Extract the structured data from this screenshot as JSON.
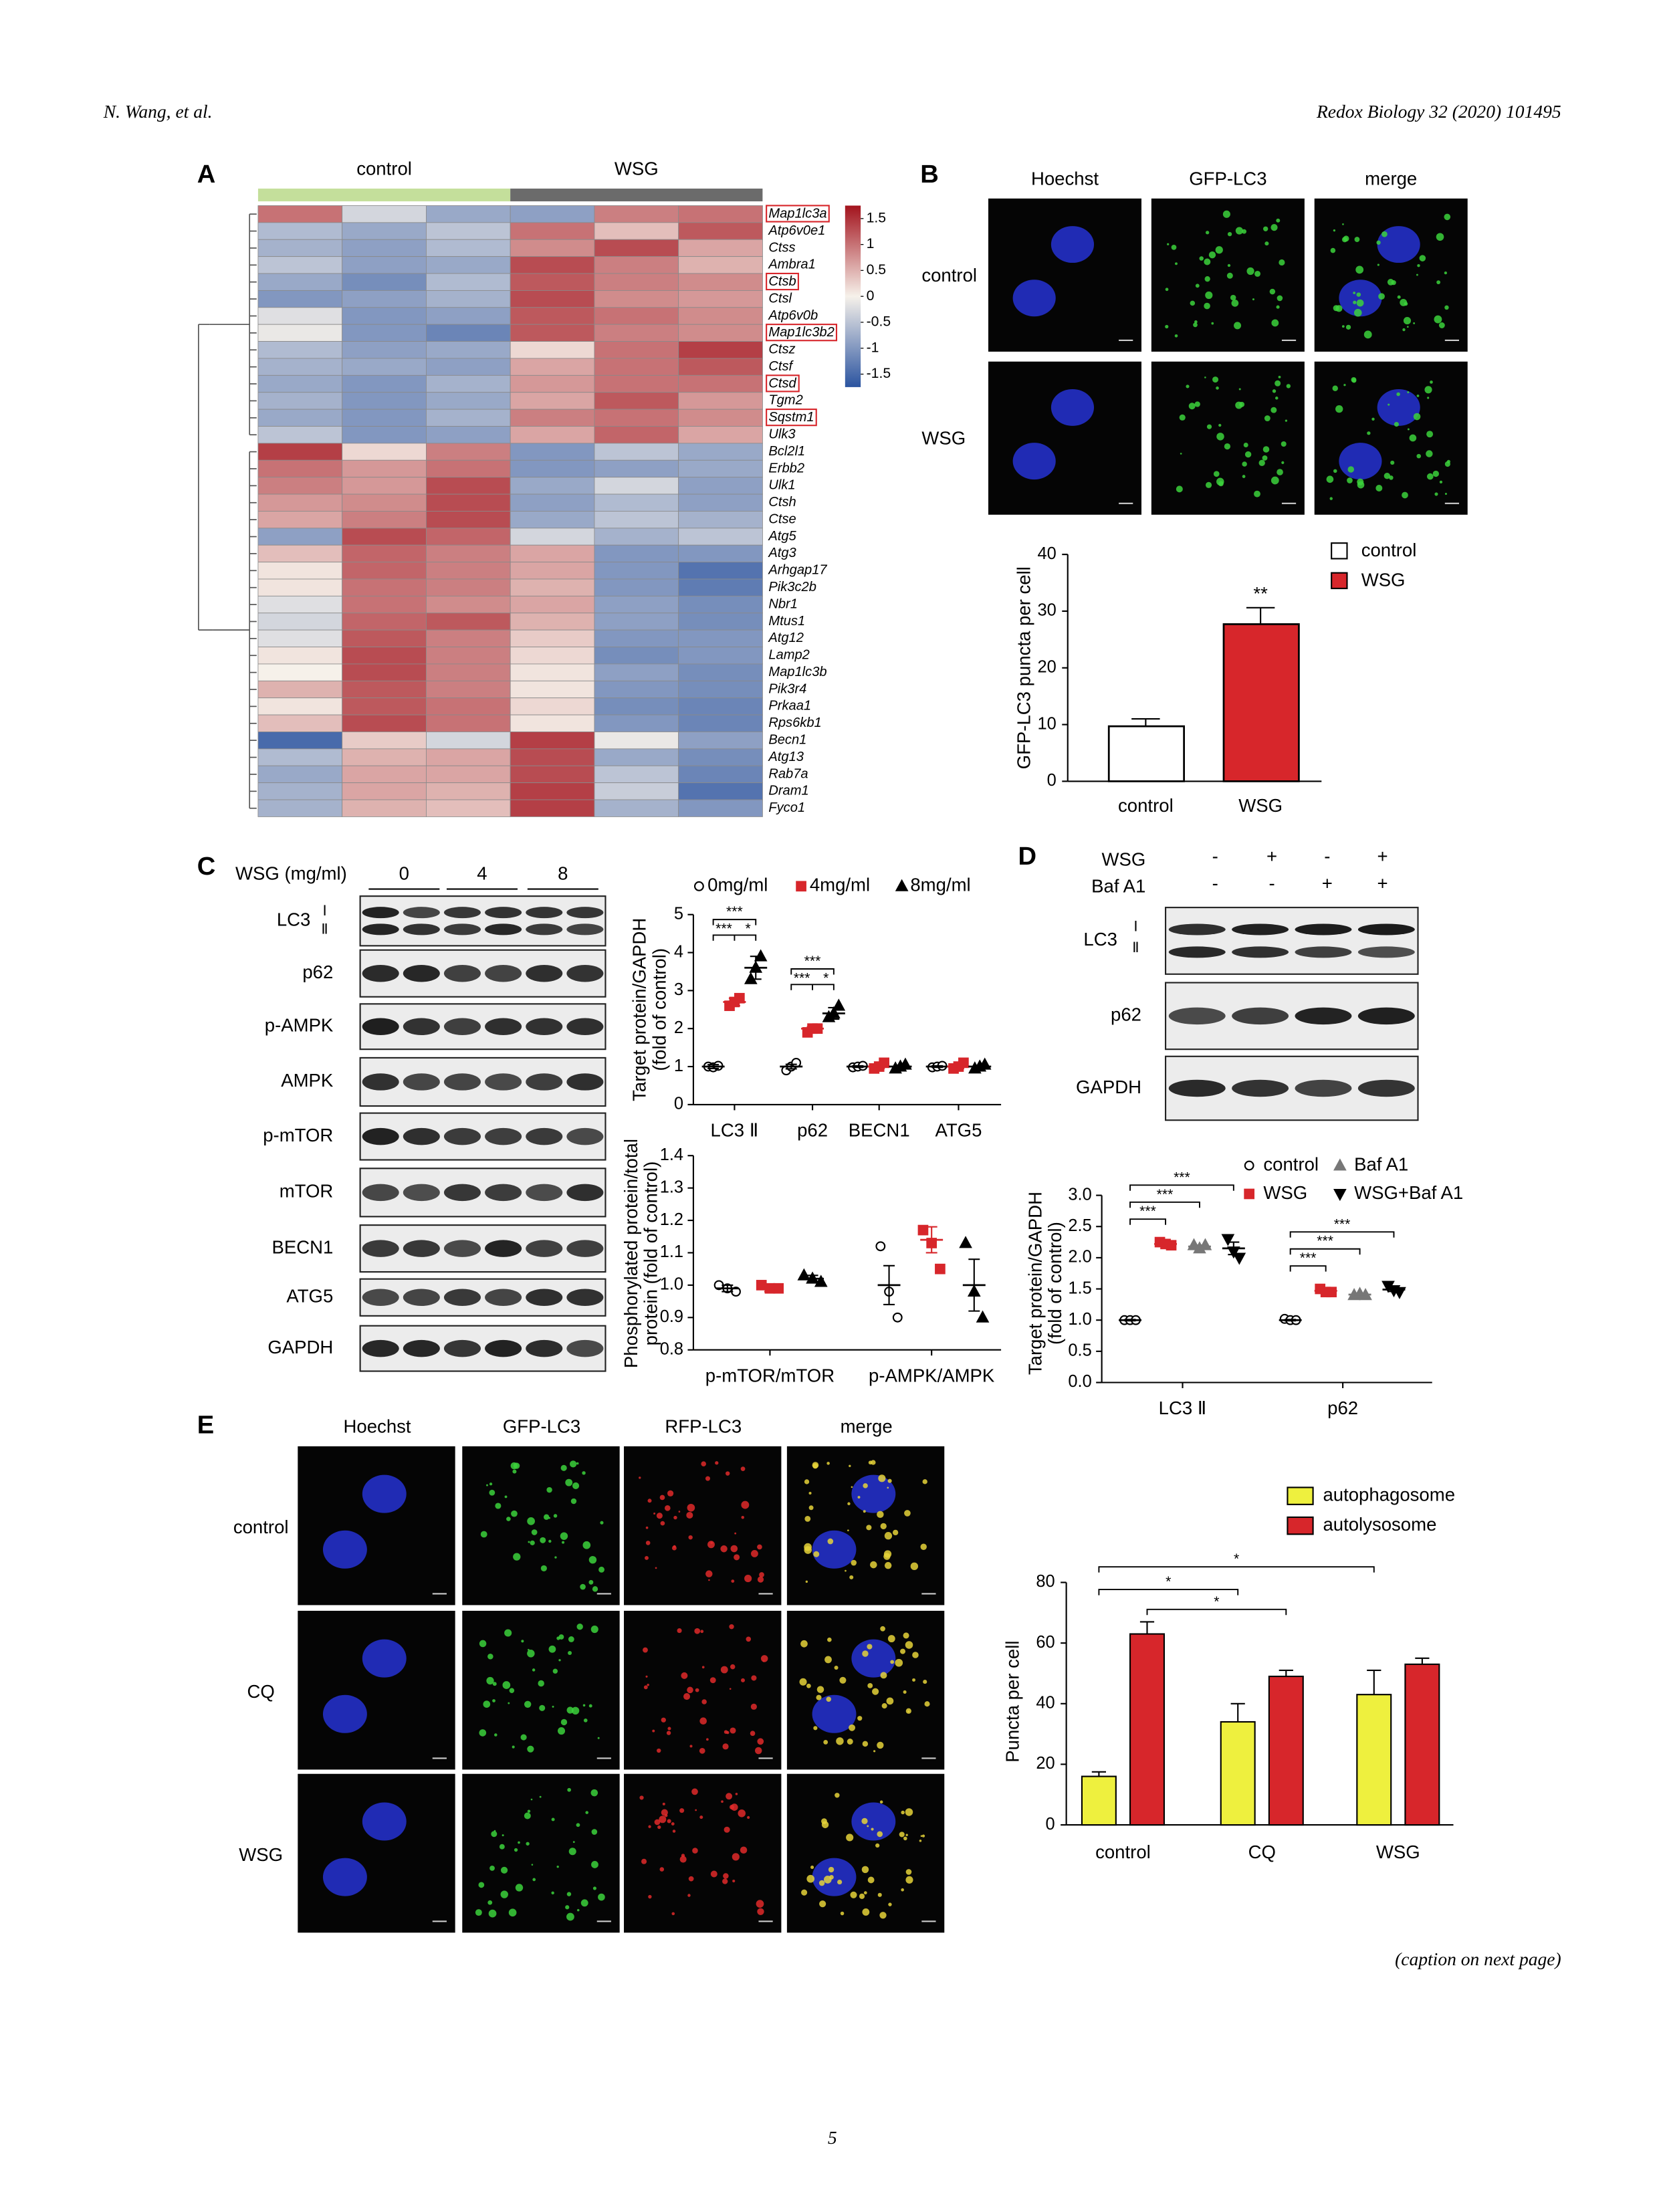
{
  "header": {
    "authors": "N. Wang, et al.",
    "journal": "Redox Biology 32 (2020) 101495"
  },
  "panel_a": {
    "label": "A",
    "groups": [
      "control",
      "WSG"
    ],
    "group_colors": [
      "#c4df9b",
      "#6b6b6b"
    ],
    "genes": [
      "Map1lc3a",
      "Atp6v0e1",
      "Ctss",
      "Ambra1",
      "Ctsb",
      "Ctsl",
      "Atp6v0b",
      "Map1lc3b2",
      "Ctsz",
      "Ctsf",
      "Ctsd",
      "Tgm2",
      "Sqstm1",
      "Ulk3",
      "Bcl2l1",
      "Erbb2",
      "Ulk1",
      "Ctsh",
      "Ctse",
      "Atg5",
      "Atg3",
      "Arhgap17",
      "Pik3c2b",
      "Nbr1",
      "Mtus1",
      "Atg12",
      "Lamp2",
      "Map1lc3b",
      "Pik3r4",
      "Prkaa1",
      "Rps6kb1",
      "Becn1",
      "Atg13",
      "Rab7a",
      "Dram1",
      "Fyco1"
    ],
    "boxed": [
      true,
      false,
      false,
      false,
      true,
      false,
      false,
      true,
      false,
      false,
      true,
      false,
      true,
      false,
      false,
      false,
      false,
      false,
      false,
      false,
      false,
      false,
      false,
      false,
      false,
      false,
      false,
      false,
      false,
      false,
      false,
      false,
      false,
      false,
      false,
      false
    ],
    "values": [
      [
        1.0,
        -0.3,
        -0.8,
        -0.9,
        0.9,
        1.0
      ],
      [
        -0.6,
        -0.8,
        -0.5,
        1.0,
        0.4,
        1.2
      ],
      [
        -0.7,
        -0.9,
        -0.6,
        0.8,
        1.3,
        0.6
      ],
      [
        -0.5,
        -0.9,
        -0.8,
        1.3,
        0.9,
        0.5
      ],
      [
        -0.8,
        -1.1,
        -0.6,
        1.2,
        0.9,
        0.8
      ],
      [
        -1.0,
        -0.9,
        -0.7,
        1.3,
        0.8,
        0.7
      ],
      [
        -0.2,
        -1.0,
        -0.9,
        1.2,
        1.0,
        0.8
      ],
      [
        -0.1,
        -1.0,
        -1.2,
        1.2,
        0.9,
        0.8
      ],
      [
        -0.6,
        -0.9,
        -0.8,
        0.2,
        1.0,
        1.4
      ],
      [
        -0.7,
        -0.8,
        -0.9,
        0.6,
        1.0,
        1.2
      ],
      [
        -0.8,
        -1.0,
        -0.7,
        0.7,
        1.0,
        1.0
      ],
      [
        -0.7,
        -1.0,
        -0.8,
        0.6,
        1.2,
        0.7
      ],
      [
        -0.8,
        -1.0,
        -0.7,
        0.9,
        1.0,
        0.8
      ],
      [
        -0.5,
        -1.0,
        -0.9,
        0.6,
        1.1,
        0.6
      ],
      [
        1.4,
        0.2,
        0.9,
        -1.0,
        -0.5,
        -0.8
      ],
      [
        1.0,
        0.7,
        1.0,
        -1.0,
        -0.9,
        -0.8
      ],
      [
        0.9,
        0.7,
        1.3,
        -0.8,
        -0.3,
        -0.9
      ],
      [
        0.7,
        0.8,
        1.3,
        -0.9,
        -0.6,
        -0.9
      ],
      [
        0.6,
        0.9,
        1.3,
        -0.8,
        -0.5,
        -0.7
      ],
      [
        -0.9,
        1.3,
        1.1,
        -0.3,
        -0.7,
        -0.5
      ],
      [
        0.4,
        1.1,
        0.9,
        0.6,
        -1.0,
        -1.0
      ],
      [
        0.1,
        1.1,
        0.9,
        0.6,
        -1.0,
        -1.4
      ],
      [
        0.1,
        1.0,
        0.9,
        0.5,
        -1.0,
        -1.3
      ],
      [
        -0.2,
        1.0,
        0.8,
        0.6,
        -0.9,
        -1.1
      ],
      [
        -0.3,
        1.1,
        1.2,
        0.5,
        -0.9,
        -1.1
      ],
      [
        -0.2,
        1.2,
        0.9,
        0.3,
        -1.0,
        -1.0
      ],
      [
        0.1,
        1.3,
        0.9,
        0.2,
        -1.1,
        -1.0
      ],
      [
        0.0,
        1.3,
        0.9,
        0.1,
        -0.9,
        -1.1
      ],
      [
        0.5,
        1.2,
        0.9,
        0.1,
        -1.0,
        -1.1
      ],
      [
        0.1,
        1.2,
        1.0,
        0.2,
        -1.1,
        -1.2
      ],
      [
        0.4,
        1.3,
        1.0,
        0.1,
        -1.0,
        -1.2
      ],
      [
        -1.5,
        0.3,
        -0.3,
        1.4,
        -0.1,
        -0.9
      ],
      [
        -0.6,
        0.5,
        0.6,
        1.3,
        -0.8,
        -1.1
      ],
      [
        -0.8,
        0.6,
        0.6,
        1.3,
        -0.5,
        -1.2
      ],
      [
        -0.7,
        0.6,
        0.5,
        1.4,
        -0.4,
        -1.4
      ],
      [
        -0.7,
        0.5,
        0.4,
        1.4,
        -0.7,
        -1.0
      ]
    ],
    "colorbar_lim": [
      -1.75,
      1.75
    ],
    "colorbar_ticks": [
      1.5,
      1,
      0.5,
      0,
      -0.5,
      -1,
      -1.5
    ],
    "colors": [
      "#2b54a0",
      "#f6f1ea",
      "#a3131d"
    ]
  },
  "panel_b": {
    "label": "B",
    "columns": [
      "Hoechst",
      "GFP-LC3",
      "merge"
    ],
    "rows": [
      "control",
      "WSG"
    ],
    "chart": {
      "type": "bar",
      "ylabel": "GFP-LC3 puncta per cell",
      "categories": [
        "control",
        "WSG"
      ],
      "values": [
        9.7,
        27.7
      ],
      "errors": [
        1.3,
        2.9
      ],
      "colors": [
        "#ffffff",
        "#d7262b"
      ],
      "annotations": [
        null,
        "**"
      ],
      "ylim": [
        0,
        40
      ],
      "yticks": [
        0,
        10,
        20,
        30,
        40
      ],
      "legend": "top-right"
    }
  },
  "panel_c": {
    "label": "C",
    "dose_label": "WSG (mg/ml)",
    "doses": [
      "0",
      "4",
      "8"
    ],
    "blots": [
      "LC3",
      "p62",
      "p-AMPK",
      "AMPK",
      "p-mTOR",
      "mTOR",
      "BECN1",
      "ATG5",
      "GAPDH"
    ],
    "lc3_forms": [
      "Ⅰ",
      "Ⅱ"
    ],
    "charts": [
      {
        "type": "scatter",
        "ylabel": [
          "Target protein/GAPDH",
          "(fold of control)"
        ],
        "categories": [
          "LC3 Ⅱ",
          "p62",
          "BECN1",
          "ATG5"
        ],
        "series": [
          {
            "name": "0mg/ml",
            "color": "#000000",
            "marker": "circle-open",
            "points": [
              [
                1.0,
                0.98,
                1.02
              ],
              [
                0.9,
                1.0,
                1.1
              ],
              [
                0.98,
                1.0,
                1.02
              ],
              [
                0.98,
                1.0,
                1.02
              ]
            ],
            "means": [
              1.0,
              1.0,
              1.0,
              1.0
            ],
            "errors": [
              0.05,
              0.06,
              0.02,
              0.02
            ]
          },
          {
            "name": "4mg/ml",
            "color": "#d7262b",
            "marker": "square",
            "points": [
              [
                2.6,
                2.7,
                2.8
              ],
              [
                1.9,
                2.0,
                2.0
              ],
              [
                0.95,
                1.0,
                1.1
              ],
              [
                0.95,
                1.0,
                1.1
              ]
            ],
            "means": [
              2.7,
              2.0,
              1.0,
              1.0
            ],
            "errors": [
              0.1,
              0.05,
              0.05,
              0.05
            ]
          },
          {
            "name": "8mg/ml",
            "color": "#000000",
            "marker": "triangle",
            "points": [
              [
                3.3,
                3.6,
                3.9
              ],
              [
                2.3,
                2.4,
                2.6
              ],
              [
                0.95,
                1.0,
                1.05
              ],
              [
                0.95,
                1.0,
                1.05
              ]
            ],
            "means": [
              3.6,
              2.4,
              1.0,
              1.0
            ],
            "errors": [
              0.3,
              0.15,
              0.03,
              0.03
            ]
          }
        ],
        "significance": [
          [
            "***",
            "***",
            "*"
          ],
          [
            "***",
            "***",
            "*"
          ]
        ],
        "ylim": [
          0,
          5
        ],
        "yticks": [
          0,
          1,
          2,
          3,
          4,
          5
        ]
      },
      {
        "type": "scatter",
        "ylabel": [
          "Phosphorylated protein/total",
          "protein (fold of control)"
        ],
        "categories": [
          "p-mTOR/mTOR",
          "p-AMPK/AMPK"
        ],
        "series": [
          {
            "name": "0mg/ml",
            "color": "#000000",
            "marker": "circle-open",
            "points": [
              [
                1.0,
                0.99,
                0.98
              ],
              [
                1.12,
                0.98,
                0.9
              ]
            ],
            "means": [
              0.99,
              1.0
            ],
            "errors": [
              0.01,
              0.06
            ]
          },
          {
            "name": "4mg/ml",
            "color": "#d7262b",
            "marker": "square",
            "points": [
              [
                1.0,
                0.99,
                0.99
              ],
              [
                1.17,
                1.13,
                1.05
              ]
            ],
            "means": [
              0.99,
              1.14
            ],
            "errors": [
              0.01,
              0.04
            ]
          },
          {
            "name": "8mg/ml",
            "color": "#000000",
            "marker": "triangle",
            "points": [
              [
                1.03,
                1.02,
                1.01
              ],
              [
                1.13,
                0.98,
                0.9
              ]
            ],
            "means": [
              1.02,
              1.0
            ],
            "errors": [
              0.01,
              0.08
            ]
          }
        ],
        "ylim": [
          0.8,
          1.4
        ],
        "yticks": [
          0.8,
          0.9,
          {
            "value": 1,
            "label": "1.0"
          },
          1.1,
          1.2,
          1.3,
          1.4
        ]
      }
    ]
  },
  "panel_d": {
    "label": "D",
    "treatments": [
      {
        "name": "WSG",
        "signs": [
          "-",
          "+",
          "-",
          "+"
        ]
      },
      {
        "name": "Baf A1",
        "signs": [
          "-",
          "-",
          "+",
          "+"
        ]
      }
    ],
    "blots": [
      "LC3",
      "p62",
      "GAPDH"
    ],
    "lc3_forms": [
      "Ⅰ",
      "Ⅱ"
    ],
    "chart": {
      "type": "scatter",
      "ylabel": [
        "Target protein/GAPDH",
        "(fold of control)"
      ],
      "categories": [
        "LC3 Ⅱ",
        "p62"
      ],
      "series": [
        {
          "name": "control",
          "color": "#000000",
          "marker": "circle-open",
          "points": [
            [
              1.0,
              1.0,
              1.0
            ],
            [
              1.02,
              1.0,
              1.0
            ]
          ],
          "means": [
            1.0,
            1.0
          ],
          "errors": [
            0.01,
            0.01
          ]
        },
        {
          "name": "WSG",
          "color": "#d7262b",
          "marker": "square",
          "points": [
            [
              2.25,
              2.22,
              2.2
            ],
            [
              1.5,
              1.45,
              1.45
            ]
          ],
          "means": [
            2.22,
            1.47
          ],
          "errors": [
            0.02,
            0.02
          ]
        },
        {
          "name": "Baf A1",
          "color": "#777777",
          "marker": "triangle",
          "points": [
            [
              2.2,
              2.15,
              2.2
            ],
            [
              1.4,
              1.42,
              1.4
            ]
          ],
          "means": [
            2.18,
            1.41
          ],
          "errors": [
            0.02,
            0.01
          ]
        },
        {
          "name": "WSG+Baf A1",
          "color": "#000000",
          "marker": "triangle-down",
          "points": [
            [
              2.3,
              2.1,
              2.0
            ],
            [
              1.55,
              1.48,
              1.45
            ]
          ],
          "means": [
            2.15,
            1.49
          ],
          "errors": [
            0.1,
            0.03
          ]
        }
      ],
      "significance": [
        [
          "***",
          "***",
          "***"
        ],
        [
          "***",
          "***",
          "***"
        ]
      ],
      "ylim": [
        0,
        3
      ],
      "yticks": [
        {
          "value": 0,
          "label": "0.0"
        },
        0.5,
        {
          "value": 1,
          "label": "1.0"
        },
        1.5,
        {
          "value": 2,
          "label": "2.0"
        },
        2.5,
        {
          "value": 3,
          "label": "3.0"
        }
      ]
    }
  },
  "panel_e": {
    "label": "E",
    "columns": [
      "Hoechst",
      "GFP-LC3",
      "RFP-LC3",
      "merge"
    ],
    "rows": [
      "control",
      "CQ",
      "WSG"
    ],
    "chart": {
      "type": "bar",
      "ylabel": "Puncta per cell",
      "categories": [
        "control",
        "CQ",
        "WSG"
      ],
      "series": [
        {
          "name": "autophagosome",
          "color": "#eef03e",
          "values": [
            16,
            34,
            43
          ],
          "errors": [
            1.5,
            6,
            8
          ]
        },
        {
          "name": "autolysosome",
          "color": "#d7262b",
          "values": [
            63,
            49,
            53
          ],
          "errors": [
            4,
            2,
            2
          ]
        }
      ],
      "significance": [
        "*",
        "*",
        "*"
      ],
      "ylim": [
        0,
        80
      ],
      "yticks": [
        0,
        20,
        40,
        60,
        80
      ]
    }
  },
  "footer": {
    "caption_note": "(caption on next page)",
    "page": "5"
  }
}
